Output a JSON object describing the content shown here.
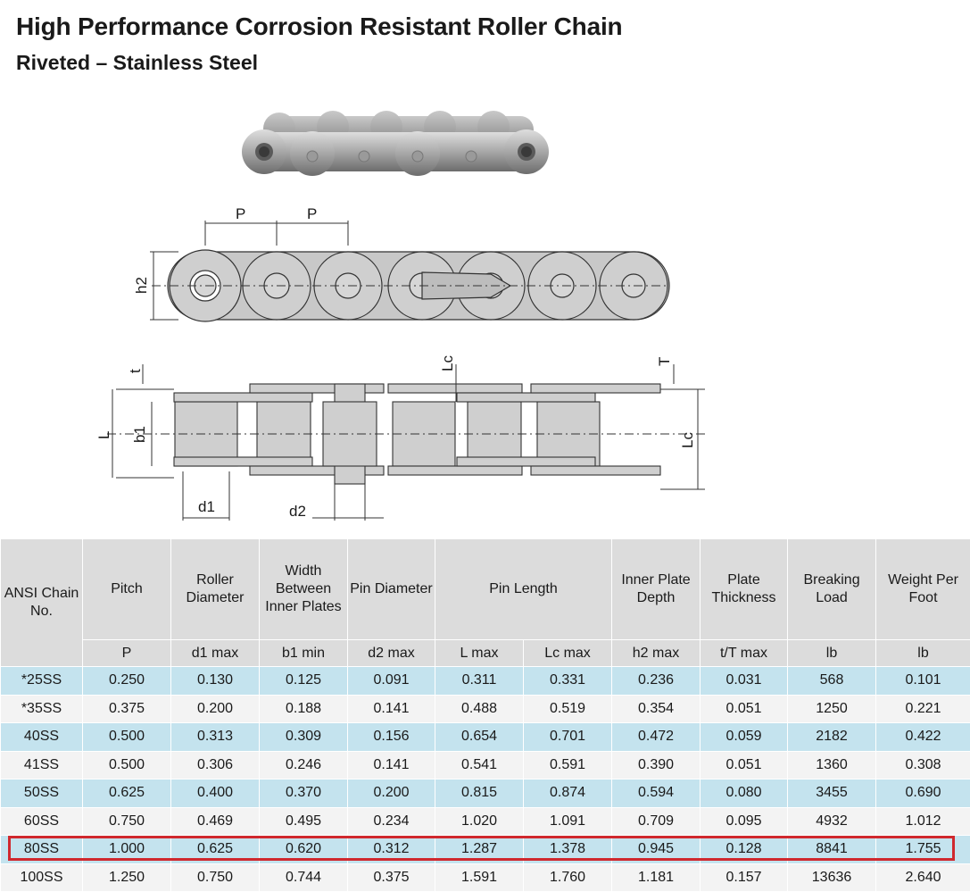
{
  "header": {
    "title": "High Performance Corrosion Resistant Roller Chain",
    "subtitle": "Riveted – Stainless Steel"
  },
  "diagram_labels": {
    "pitch": "P",
    "plate_depth": "h2",
    "plate_thickness_t": "t",
    "pin_length_l": "L",
    "inner_width": "b1",
    "roller_dia": "d1",
    "pin_dia": "d2",
    "lc_top": "Lc",
    "thickness_T": "T",
    "lc_right": "Lc"
  },
  "table": {
    "headers": [
      "ANSI Chain No.",
      "Pitch",
      "Roller Diameter",
      "Width Between Inner Plates",
      "Pin Diameter",
      "Pin Length",
      "Inner Plate Depth",
      "Plate Thickness",
      "Breaking Load",
      "Weight Per Foot"
    ],
    "subheaders": [
      "P",
      "d1 max",
      "b1 min",
      "d2 max",
      "L max",
      "Lc max",
      "h2 max",
      "t/T max",
      "lb",
      "lb"
    ],
    "rows": [
      [
        "*25SS",
        "0.250",
        "0.130",
        "0.125",
        "0.091",
        "0.311",
        "0.331",
        "0.236",
        "0.031",
        "568",
        "0.101"
      ],
      [
        "*35SS",
        "0.375",
        "0.200",
        "0.188",
        "0.141",
        "0.488",
        "0.519",
        "0.354",
        "0.051",
        "1250",
        "0.221"
      ],
      [
        "40SS",
        "0.500",
        "0.313",
        "0.309",
        "0.156",
        "0.654",
        "0.701",
        "0.472",
        "0.059",
        "2182",
        "0.422"
      ],
      [
        "41SS",
        "0.500",
        "0.306",
        "0.246",
        "0.141",
        "0.541",
        "0.591",
        "0.390",
        "0.051",
        "1360",
        "0.308"
      ],
      [
        "50SS",
        "0.625",
        "0.400",
        "0.370",
        "0.200",
        "0.815",
        "0.874",
        "0.594",
        "0.080",
        "3455",
        "0.690"
      ],
      [
        "60SS",
        "0.750",
        "0.469",
        "0.495",
        "0.234",
        "1.020",
        "1.091",
        "0.709",
        "0.095",
        "4932",
        "1.012"
      ],
      [
        "80SS",
        "1.000",
        "0.625",
        "0.620",
        "0.312",
        "1.287",
        "1.378",
        "0.945",
        "0.128",
        "8841",
        "1.755"
      ],
      [
        "100SS",
        "1.250",
        "0.750",
        "0.744",
        "0.375",
        "1.591",
        "1.760",
        "1.181",
        "0.157",
        "13636",
        "2.640"
      ]
    ],
    "highlighted_row": "80SS"
  },
  "colors": {
    "blue_row": "#c4e3ee",
    "white_row": "#f3f3f3",
    "header_bg": "#dcdcdc",
    "highlight": "#d0282e"
  }
}
